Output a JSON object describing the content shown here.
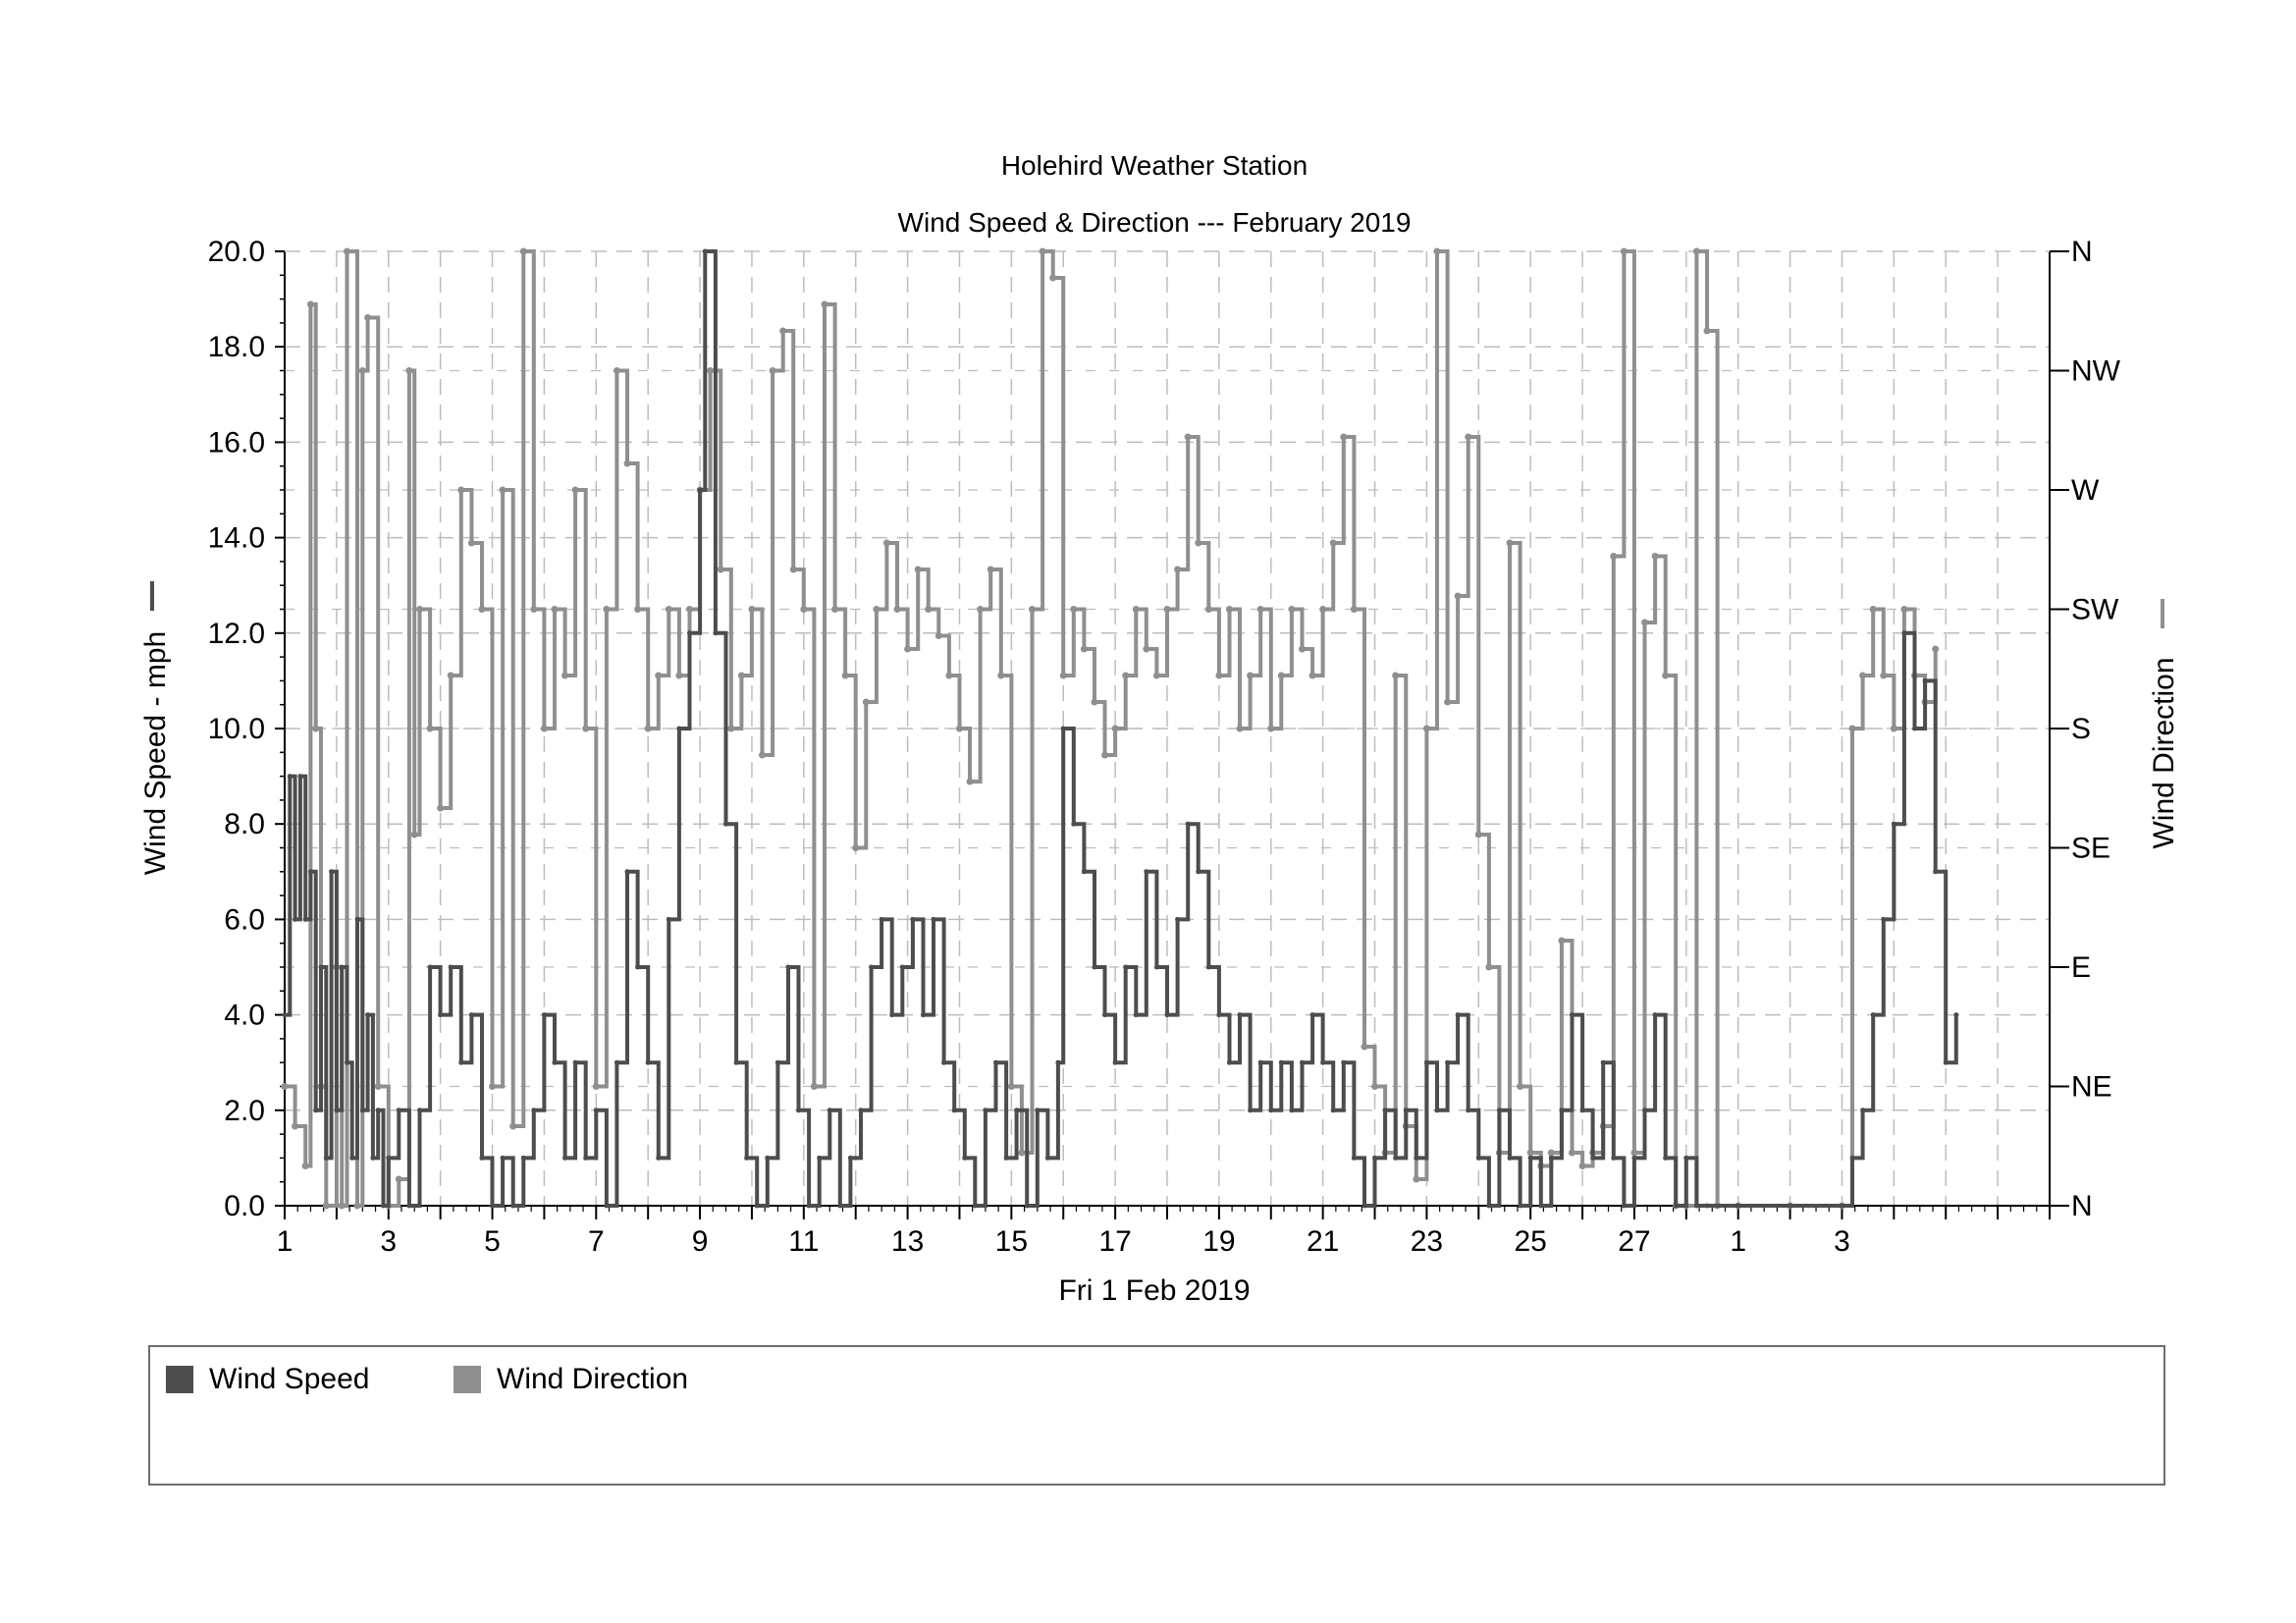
{
  "chart_data": {
    "type": "line",
    "title": "Holehird Weather Station",
    "subtitle": "Wind Speed & Direction --- February 2019",
    "xlabel": "Fri 1 Feb 2019",
    "ylabel_left": "Wind Speed - mph",
    "ylabel_right": "Wind Direction",
    "x_range_days": [
      1,
      35
    ],
    "x_tick_labels": [
      "1",
      "3",
      "5",
      "7",
      "9",
      "11",
      "13",
      "15",
      "17",
      "19",
      "21",
      "23",
      "25",
      "27",
      "1",
      "3"
    ],
    "ylim_left": [
      0,
      20
    ],
    "y_tick_labels_left": [
      "0.0",
      "2.0",
      "4.0",
      "6.0",
      "8.0",
      "10.0",
      "12.0",
      "14.0",
      "16.0",
      "18.0",
      "20.0"
    ],
    "y_tick_labels_right": [
      "N",
      "NE",
      "E",
      "SE",
      "S",
      "SW",
      "W",
      "NW",
      "N"
    ],
    "grid": true,
    "legend_position": "bottom",
    "colors": {
      "speed": "#4d4d4d",
      "direction": "#8f8f8f",
      "grid": "#bdbdbd"
    },
    "series": [
      {
        "name": "Wind Speed",
        "unit": "mph",
        "points": [
          [
            1.0,
            4
          ],
          [
            1.1,
            9
          ],
          [
            1.2,
            6
          ],
          [
            1.3,
            9
          ],
          [
            1.4,
            6
          ],
          [
            1.5,
            7
          ],
          [
            1.6,
            2
          ],
          [
            1.7,
            5
          ],
          [
            1.8,
            1
          ],
          [
            1.9,
            7
          ],
          [
            2.0,
            2
          ],
          [
            2.1,
            5
          ],
          [
            2.2,
            3
          ],
          [
            2.3,
            1
          ],
          [
            2.4,
            6
          ],
          [
            2.5,
            2
          ],
          [
            2.6,
            4
          ],
          [
            2.7,
            1
          ],
          [
            2.8,
            2
          ],
          [
            2.9,
            0
          ],
          [
            3.0,
            1
          ],
          [
            3.2,
            2
          ],
          [
            3.4,
            0
          ],
          [
            3.6,
            2
          ],
          [
            3.8,
            5
          ],
          [
            4.0,
            4
          ],
          [
            4.2,
            5
          ],
          [
            4.4,
            3
          ],
          [
            4.6,
            4
          ],
          [
            4.8,
            1
          ],
          [
            5.0,
            0
          ],
          [
            5.2,
            1
          ],
          [
            5.4,
            0
          ],
          [
            5.6,
            1
          ],
          [
            5.8,
            2
          ],
          [
            6.0,
            4
          ],
          [
            6.2,
            3
          ],
          [
            6.4,
            1
          ],
          [
            6.6,
            3
          ],
          [
            6.8,
            1
          ],
          [
            7.0,
            2
          ],
          [
            7.2,
            0
          ],
          [
            7.4,
            3
          ],
          [
            7.6,
            7
          ],
          [
            7.8,
            5
          ],
          [
            8.0,
            3
          ],
          [
            8.2,
            1
          ],
          [
            8.4,
            6
          ],
          [
            8.6,
            10
          ],
          [
            8.8,
            12
          ],
          [
            9.0,
            15
          ],
          [
            9.1,
            20
          ],
          [
            9.3,
            12
          ],
          [
            9.5,
            8
          ],
          [
            9.7,
            3
          ],
          [
            9.9,
            1
          ],
          [
            10.1,
            0
          ],
          [
            10.3,
            1
          ],
          [
            10.5,
            3
          ],
          [
            10.7,
            5
          ],
          [
            10.9,
            2
          ],
          [
            11.1,
            0
          ],
          [
            11.3,
            1
          ],
          [
            11.5,
            2
          ],
          [
            11.7,
            0
          ],
          [
            11.9,
            1
          ],
          [
            12.1,
            2
          ],
          [
            12.3,
            5
          ],
          [
            12.5,
            6
          ],
          [
            12.7,
            4
          ],
          [
            12.9,
            5
          ],
          [
            13.1,
            6
          ],
          [
            13.3,
            4
          ],
          [
            13.5,
            6
          ],
          [
            13.7,
            3
          ],
          [
            13.9,
            2
          ],
          [
            14.1,
            1
          ],
          [
            14.3,
            0
          ],
          [
            14.5,
            2
          ],
          [
            14.7,
            3
          ],
          [
            14.9,
            1
          ],
          [
            15.1,
            2
          ],
          [
            15.3,
            0
          ],
          [
            15.5,
            2
          ],
          [
            15.7,
            1
          ],
          [
            15.9,
            3
          ],
          [
            16.0,
            10
          ],
          [
            16.2,
            8
          ],
          [
            16.4,
            7
          ],
          [
            16.6,
            5
          ],
          [
            16.8,
            4
          ],
          [
            17.0,
            3
          ],
          [
            17.2,
            5
          ],
          [
            17.4,
            4
          ],
          [
            17.6,
            7
          ],
          [
            17.8,
            5
          ],
          [
            18.0,
            4
          ],
          [
            18.2,
            6
          ],
          [
            18.4,
            8
          ],
          [
            18.6,
            7
          ],
          [
            18.8,
            5
          ],
          [
            19.0,
            4
          ],
          [
            19.2,
            3
          ],
          [
            19.4,
            4
          ],
          [
            19.6,
            2
          ],
          [
            19.8,
            3
          ],
          [
            20.0,
            2
          ],
          [
            20.2,
            3
          ],
          [
            20.4,
            2
          ],
          [
            20.6,
            3
          ],
          [
            20.8,
            4
          ],
          [
            21.0,
            3
          ],
          [
            21.2,
            2
          ],
          [
            21.4,
            3
          ],
          [
            21.6,
            1
          ],
          [
            21.8,
            0
          ],
          [
            22.0,
            1
          ],
          [
            22.2,
            2
          ],
          [
            22.4,
            1
          ],
          [
            22.6,
            2
          ],
          [
            22.8,
            1
          ],
          [
            23.0,
            3
          ],
          [
            23.2,
            2
          ],
          [
            23.4,
            3
          ],
          [
            23.6,
            4
          ],
          [
            23.8,
            2
          ],
          [
            24.0,
            1
          ],
          [
            24.2,
            0
          ],
          [
            24.4,
            2
          ],
          [
            24.6,
            1
          ],
          [
            24.8,
            0
          ],
          [
            25.0,
            1
          ],
          [
            25.2,
            0
          ],
          [
            25.4,
            1
          ],
          [
            25.6,
            2
          ],
          [
            25.8,
            4
          ],
          [
            26.0,
            2
          ],
          [
            26.2,
            1
          ],
          [
            26.4,
            3
          ],
          [
            26.6,
            1
          ],
          [
            26.8,
            0
          ],
          [
            27.0,
            1
          ],
          [
            27.2,
            2
          ],
          [
            27.4,
            4
          ],
          [
            27.6,
            1
          ],
          [
            27.8,
            0
          ],
          [
            28.0,
            1
          ],
          [
            28.2,
            0
          ],
          [
            28.4,
            0
          ],
          [
            29.0,
            0
          ],
          [
            30.0,
            0
          ],
          [
            31.0,
            0
          ],
          [
            31.2,
            1
          ],
          [
            31.4,
            2
          ],
          [
            31.6,
            4
          ],
          [
            31.8,
            6
          ],
          [
            32.0,
            8
          ],
          [
            32.2,
            12
          ],
          [
            32.4,
            10
          ],
          [
            32.6,
            11
          ],
          [
            32.8,
            7
          ],
          [
            33.0,
            3
          ],
          [
            33.2,
            4
          ]
        ]
      },
      {
        "name": "Wind Direction",
        "unit": "compass",
        "points": [
          [
            1.0,
            45
          ],
          [
            1.2,
            30
          ],
          [
            1.4,
            15
          ],
          [
            1.5,
            340
          ],
          [
            1.6,
            180
          ],
          [
            1.7,
            45
          ],
          [
            1.8,
            0
          ],
          [
            2.0,
            90
          ],
          [
            2.1,
            0
          ],
          [
            2.2,
            360
          ],
          [
            2.4,
            0
          ],
          [
            2.5,
            315
          ],
          [
            2.6,
            335
          ],
          [
            2.8,
            45
          ],
          [
            3.0,
            0
          ],
          [
            3.2,
            10
          ],
          [
            3.4,
            315
          ],
          [
            3.5,
            140
          ],
          [
            3.6,
            225
          ],
          [
            3.8,
            180
          ],
          [
            4.0,
            150
          ],
          [
            4.2,
            200
          ],
          [
            4.4,
            270
          ],
          [
            4.6,
            250
          ],
          [
            4.8,
            225
          ],
          [
            5.0,
            45
          ],
          [
            5.2,
            270
          ],
          [
            5.4,
            30
          ],
          [
            5.6,
            360
          ],
          [
            5.8,
            225
          ],
          [
            6.0,
            180
          ],
          [
            6.2,
            225
          ],
          [
            6.4,
            200
          ],
          [
            6.6,
            270
          ],
          [
            6.8,
            180
          ],
          [
            7.0,
            45
          ],
          [
            7.2,
            225
          ],
          [
            7.4,
            315
          ],
          [
            7.6,
            280
          ],
          [
            7.8,
            225
          ],
          [
            8.0,
            180
          ],
          [
            8.2,
            200
          ],
          [
            8.4,
            225
          ],
          [
            8.6,
            200
          ],
          [
            8.8,
            225
          ],
          [
            9.0,
            270
          ],
          [
            9.2,
            315
          ],
          [
            9.4,
            240
          ],
          [
            9.6,
            180
          ],
          [
            9.8,
            200
          ],
          [
            10.0,
            225
          ],
          [
            10.2,
            170
          ],
          [
            10.4,
            315
          ],
          [
            10.6,
            330
          ],
          [
            10.8,
            240
          ],
          [
            11.0,
            225
          ],
          [
            11.2,
            45
          ],
          [
            11.4,
            340
          ],
          [
            11.6,
            225
          ],
          [
            11.8,
            200
          ],
          [
            12.0,
            135
          ],
          [
            12.2,
            190
          ],
          [
            12.4,
            225
          ],
          [
            12.6,
            250
          ],
          [
            12.8,
            225
          ],
          [
            13.0,
            210
          ],
          [
            13.2,
            240
          ],
          [
            13.4,
            225
          ],
          [
            13.6,
            215
          ],
          [
            13.8,
            200
          ],
          [
            14.0,
            180
          ],
          [
            14.2,
            160
          ],
          [
            14.4,
            225
          ],
          [
            14.6,
            240
          ],
          [
            14.8,
            200
          ],
          [
            15.0,
            45
          ],
          [
            15.2,
            20
          ],
          [
            15.4,
            225
          ],
          [
            15.6,
            360
          ],
          [
            15.8,
            350
          ],
          [
            16.0,
            200
          ],
          [
            16.2,
            225
          ],
          [
            16.4,
            210
          ],
          [
            16.6,
            190
          ],
          [
            16.8,
            170
          ],
          [
            17.0,
            180
          ],
          [
            17.2,
            200
          ],
          [
            17.4,
            225
          ],
          [
            17.6,
            210
          ],
          [
            17.8,
            200
          ],
          [
            18.0,
            225
          ],
          [
            18.2,
            240
          ],
          [
            18.4,
            290
          ],
          [
            18.6,
            250
          ],
          [
            18.8,
            225
          ],
          [
            19.0,
            200
          ],
          [
            19.2,
            225
          ],
          [
            19.4,
            180
          ],
          [
            19.6,
            200
          ],
          [
            19.8,
            225
          ],
          [
            20.0,
            180
          ],
          [
            20.2,
            200
          ],
          [
            20.4,
            225
          ],
          [
            20.6,
            210
          ],
          [
            20.8,
            200
          ],
          [
            21.0,
            225
          ],
          [
            21.2,
            250
          ],
          [
            21.4,
            290
          ],
          [
            21.6,
            225
          ],
          [
            21.8,
            60
          ],
          [
            22.0,
            45
          ],
          [
            22.2,
            20
          ],
          [
            22.4,
            200
          ],
          [
            22.6,
            30
          ],
          [
            22.8,
            10
          ],
          [
            23.0,
            180
          ],
          [
            23.2,
            360
          ],
          [
            23.4,
            190
          ],
          [
            23.6,
            230
          ],
          [
            23.8,
            290
          ],
          [
            24.0,
            140
          ],
          [
            24.2,
            90
          ],
          [
            24.4,
            20
          ],
          [
            24.6,
            250
          ],
          [
            24.8,
            45
          ],
          [
            25.0,
            20
          ],
          [
            25.2,
            15
          ],
          [
            25.4,
            20
          ],
          [
            25.6,
            100
          ],
          [
            25.8,
            20
          ],
          [
            26.0,
            15
          ],
          [
            26.2,
            20
          ],
          [
            26.4,
            30
          ],
          [
            26.6,
            245
          ],
          [
            26.8,
            360
          ],
          [
            27.0,
            20
          ],
          [
            27.2,
            220
          ],
          [
            27.4,
            245
          ],
          [
            27.6,
            200
          ],
          [
            27.8,
            0
          ],
          [
            28.0,
            0
          ],
          [
            28.2,
            360
          ],
          [
            28.4,
            330
          ],
          [
            28.6,
            0
          ],
          [
            29.0,
            0
          ],
          [
            30.0,
            0
          ],
          [
            31.0,
            0
          ],
          [
            31.2,
            180
          ],
          [
            31.4,
            200
          ],
          [
            31.6,
            225
          ],
          [
            31.8,
            200
          ],
          [
            32.0,
            180
          ],
          [
            32.2,
            225
          ],
          [
            32.4,
            200
          ],
          [
            32.6,
            190
          ],
          [
            32.8,
            210
          ]
        ]
      }
    ]
  },
  "legend": {
    "items": [
      {
        "label": "Wind Speed",
        "color": "#4d4d4d"
      },
      {
        "label": "Wind Direction",
        "color": "#8f8f8f"
      }
    ]
  }
}
